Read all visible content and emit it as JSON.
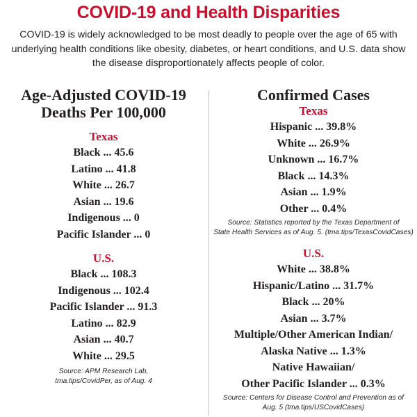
{
  "title": "COVID-19 and Health Disparities",
  "intro": "COVID-19 is widely acknowledged to be most deadly to people over the age of 65 with underlying health conditions like obesity, diabetes, or heart conditions, and U.S. data show the disease disproportionately affects people of color.",
  "deaths": {
    "heading_line1": "Age-Adjusted COVID-19",
    "heading_line2": "Deaths Per 100,000",
    "texas": {
      "label": "Texas",
      "rows": [
        "Black ... 45.6",
        "Latino ... 41.8",
        "White ... 26.7",
        "Asian ... 19.6",
        "Indigenous ... 0",
        "Pacific Islander ... 0"
      ]
    },
    "us": {
      "label": "U.S.",
      "rows": [
        "Black ... 108.3",
        "Indigenous ... 102.4",
        "Pacific Islander ... 91.3",
        "Latino ... 82.9",
        "Asian ... 40.7",
        "White ... 29.5"
      ]
    },
    "source_line1": "Source: APM Research Lab,",
    "source_line2": "tma.tips/CovidPer, as of Aug. 4"
  },
  "cases": {
    "heading": "Confirmed Cases",
    "texas": {
      "label": "Texas",
      "rows": [
        "Hispanic ... 39.8%",
        "White ... 26.9%",
        "Unknown ... 16.7%",
        "Black ... 14.3%",
        "Asian ... 1.9%",
        "Other ... 0.4%"
      ],
      "source_line1": "Source: Statistics reported by the Texas Department of",
      "source_line2": "State Health Services as of Aug. 5. (tma.tips/TexasCovidCases)"
    },
    "us": {
      "label": "U.S.",
      "rows": [
        "White ... 38.8%",
        "Hispanic/Latino ... 31.7%",
        "Black ... 20%",
        "Asian ... 3.7%",
        "Multiple/Other American Indian/",
        "Alaska Native ... 1.3%",
        "Native Hawaiian/",
        "Other Pacific Islander ... 0.3%"
      ],
      "source_line1": "Source: Centers for Disease Control and Prevention as of",
      "source_line2": "Aug. 5 (tma.tips/USCovidCases)"
    }
  }
}
